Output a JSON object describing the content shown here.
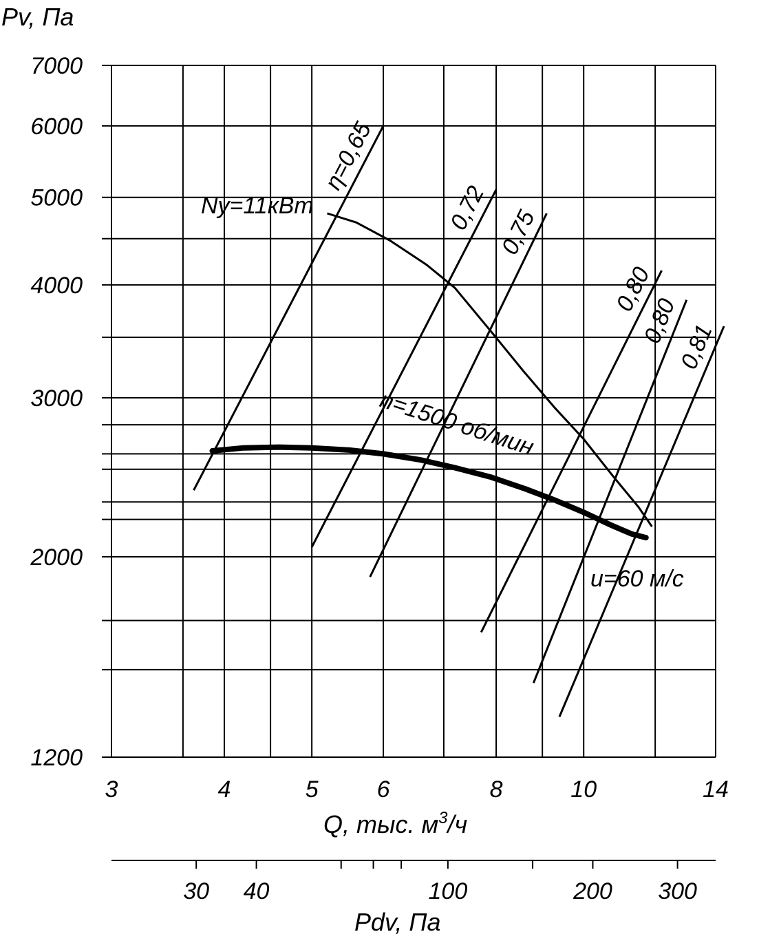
{
  "chart_data": {
    "type": "line",
    "title": "",
    "ylabel": "Pv, Па",
    "xlabel": "Q, тыс. м",
    "xlabel_sup": "3",
    "xlabel_tail": "/ч",
    "x2label": "Pdv, Па",
    "x_scale": "log",
    "y_scale": "log",
    "xlim": [
      3,
      14
    ],
    "ylim": [
      1200,
      7000
    ],
    "x_ticks": [
      3,
      4,
      5,
      6,
      8,
      10,
      14
    ],
    "y_ticks": [
      1200,
      2000,
      3000,
      4000,
      5000,
      6000,
      7000
    ],
    "x_grid": [
      3,
      3.6,
      4,
      4.5,
      5,
      6,
      7,
      8,
      9,
      10,
      12,
      14
    ],
    "y_grid": [
      1200,
      1500,
      1700,
      2000,
      2200,
      2300,
      2500,
      2600,
      2800,
      3000,
      3500,
      4000,
      4500,
      5000,
      6000,
      7000
    ],
    "x2_ticks": [
      30,
      40,
      100,
      200,
      300
    ],
    "x2_minor": [
      60,
      70,
      80,
      150
    ],
    "x2_range": [
      20,
      360
    ],
    "grid": true,
    "series": [
      {
        "name": "n=1500 об/мин",
        "role": "performance",
        "x": [
          3.88,
          4.2,
          4.6,
          5.0,
          5.5,
          6.0,
          6.6,
          7.2,
          7.9,
          8.6,
          9.3,
          10.0,
          10.7,
          11.3,
          11.72
        ],
        "y": [
          2620,
          2640,
          2645,
          2640,
          2625,
          2600,
          2560,
          2510,
          2450,
          2380,
          2310,
          2240,
          2170,
          2120,
          2100
        ]
      },
      {
        "name": "Ny=11кВт",
        "role": "power",
        "x": [
          5.2,
          5.6,
          6.1,
          6.7,
          7.2,
          7.9,
          8.6,
          9.3,
          10.0,
          10.8,
          11.5,
          11.9
        ],
        "y": [
          4800,
          4690,
          4480,
          4210,
          3970,
          3550,
          3200,
          2920,
          2700,
          2450,
          2270,
          2160
        ]
      }
    ],
    "efficiency_lines": [
      {
        "label": "η=0,65",
        "x": [
          3.7,
          6.0
        ],
        "y": [
          2370,
          6000
        ]
      },
      {
        "label": "0,72",
        "x": [
          5.0,
          8.0
        ],
        "y": [
          2050,
          5100
        ]
      },
      {
        "label": "0,75",
        "x": [
          5.8,
          9.1
        ],
        "y": [
          1900,
          4800
        ]
      },
      {
        "label": "0,80",
        "x": [
          7.7,
          12.2
        ],
        "y": [
          1650,
          4150
        ]
      },
      {
        "label": "0,80",
        "x": [
          8.8,
          13.0
        ],
        "y": [
          1450,
          3850
        ]
      },
      {
        "label": "0,81",
        "x": [
          9.4,
          14.3
        ],
        "y": [
          1330,
          3600
        ]
      }
    ],
    "annotations": [
      {
        "text": "Ny=11кВт"
      },
      {
        "text": "n=1500 об/мин"
      },
      {
        "text": "u=60 м/с"
      }
    ]
  }
}
